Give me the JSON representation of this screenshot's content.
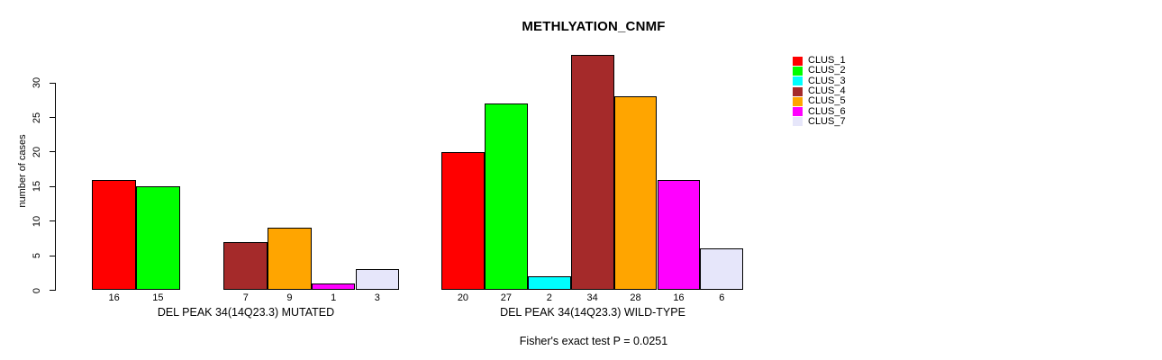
{
  "title": "METHLYATION_CNMF",
  "y_axis": {
    "label": "number of cases",
    "ticks": [
      0,
      5,
      10,
      15,
      20,
      25,
      30
    ]
  },
  "legend": {
    "items": [
      {
        "label": "CLUS_1",
        "color": "#FF0000"
      },
      {
        "label": "CLUS_2",
        "color": "#00FF00"
      },
      {
        "label": "CLUS_3",
        "color": "#00FFFF"
      },
      {
        "label": "CLUS_4",
        "color": "#A52A2A"
      },
      {
        "label": "CLUS_5",
        "color": "#FFA500"
      },
      {
        "label": "CLUS_6",
        "color": "#FF00FF"
      },
      {
        "label": "CLUS_7",
        "color": "#E6E6FA"
      }
    ]
  },
  "footer": "Fisher's exact test P = 0.0251",
  "chart_data": {
    "type": "bar",
    "title": "METHLYATION_CNMF",
    "ylabel": "number of cases",
    "xlabel": "",
    "ylim": [
      0,
      34
    ],
    "yticks": [
      0,
      5,
      10,
      15,
      20,
      25,
      30
    ],
    "grid": false,
    "legend_position": "top-right",
    "series": [
      {
        "name": "CLUS_1",
        "color": "#FF0000"
      },
      {
        "name": "CLUS_2",
        "color": "#00FF00"
      },
      {
        "name": "CLUS_3",
        "color": "#00FFFF"
      },
      {
        "name": "CLUS_4",
        "color": "#A52A2A"
      },
      {
        "name": "CLUS_5",
        "color": "#FFA500"
      },
      {
        "name": "CLUS_6",
        "color": "#FF00FF"
      },
      {
        "name": "CLUS_7",
        "color": "#E6E6FA"
      }
    ],
    "groups": [
      {
        "label": "DEL PEAK 34(14Q23.3) MUTATED",
        "values": [
          16,
          15,
          null,
          7,
          9,
          1,
          3
        ]
      },
      {
        "label": "DEL PEAK 34(14Q23.3) WILD-TYPE",
        "values": [
          20,
          27,
          2,
          34,
          28,
          16,
          6
        ]
      }
    ],
    "annotation": "Fisher's exact test P = 0.0251"
  }
}
